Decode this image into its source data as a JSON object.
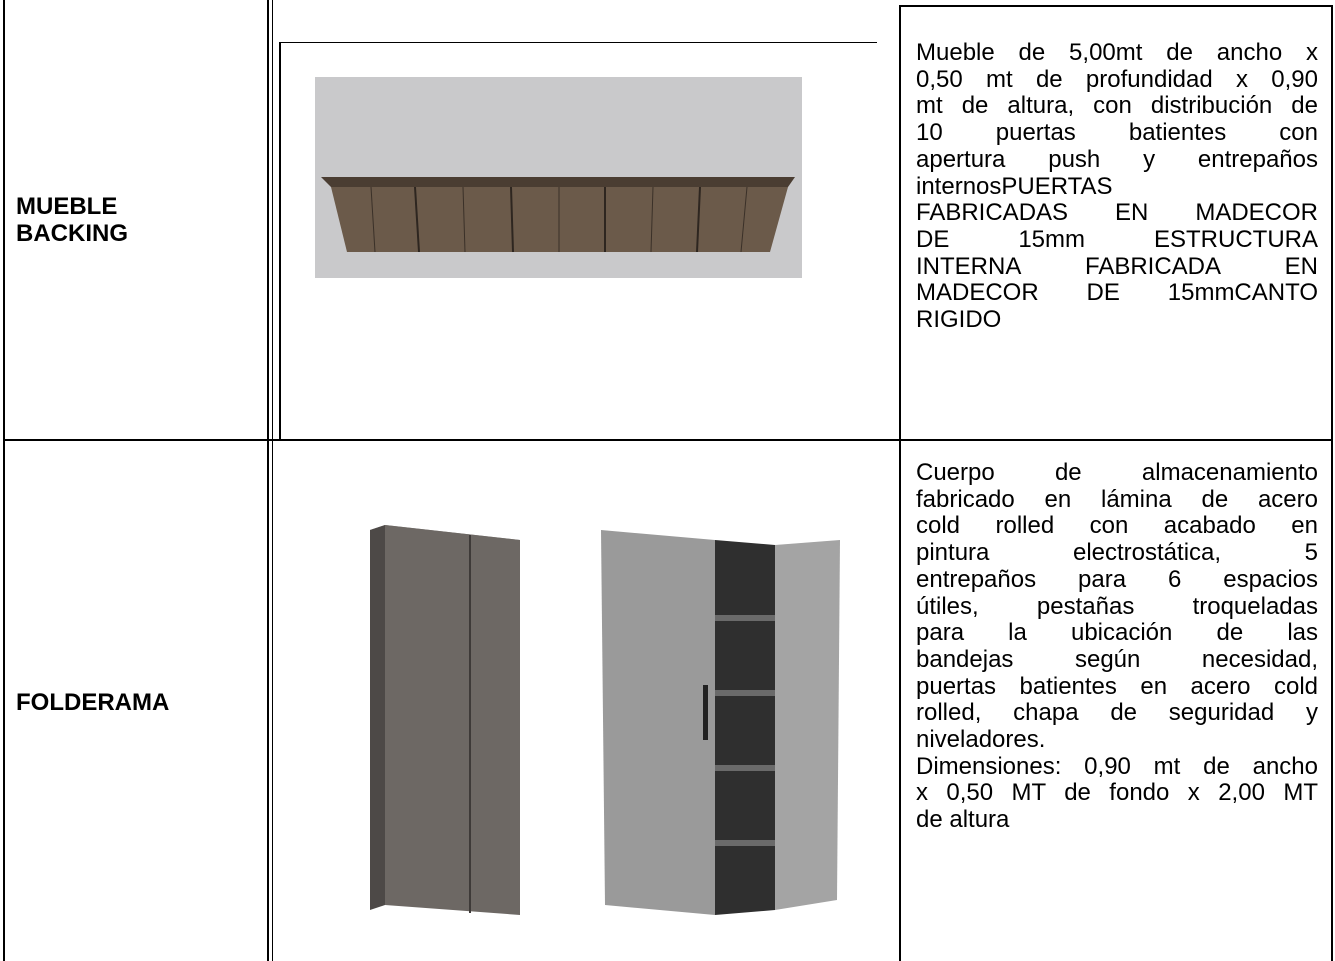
{
  "table": {
    "rows": [
      {
        "name": "MUEBLE BACKING",
        "description": [
          [
            "Mueble de 5,00mt de ancho x",
            "0,50 mt de profundidad  x 0,90",
            "mt de altura, con distribución de",
            "10 puertas batientes con",
            "apertura push  y entrepaños",
            "internosPUERTAS"
          ],
          [
            "FABRICADAS EN MADECOR",
            "DE 15mm ESTRUCTURA",
            "INTERNA FABRICADA EN",
            "MADECOR DE 15mmCANTO",
            "RIGIDO"
          ]
        ]
      },
      {
        "name": "FOLDERAMA",
        "description": [
          [
            "Cuerpo de almacenamiento",
            "fabricado en lámina de acero",
            "cold rolled con acabado en",
            "pintura electrostática, 5",
            "entrepaños para 6 espacios",
            "útiles, pestañas troqueladas",
            "para la ubicación de las",
            "bandejas según necesidad,",
            "puertas batientes en acero cold",
            "rolled, chapa de seguridad  y",
            "niveladores."
          ],
          [
            "Dimensiones: 0,90 mt de ancho",
            "x 0,50 MT de fondo x 2,00 MT",
            "de altura"
          ]
        ]
      }
    ]
  }
}
